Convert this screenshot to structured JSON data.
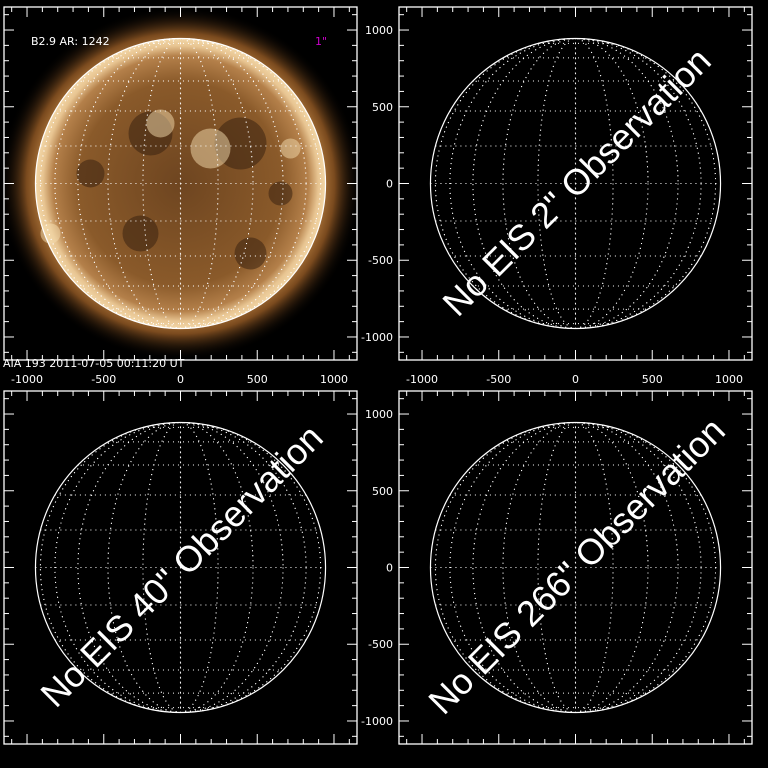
{
  "panels": [
    {
      "id": "aia",
      "has_image": true,
      "x_labels": true,
      "y_labels": false,
      "flare_label": "B2.9 AR: 1242",
      "resolution_label": "1\"",
      "footer": "AIA 193   2011-07-05 00:11:20 UT",
      "message": ""
    },
    {
      "id": "eis-2",
      "has_image": false,
      "x_labels": true,
      "y_labels": true,
      "message": "No EIS 2\" Observation"
    },
    {
      "id": "eis-40",
      "has_image": false,
      "x_labels": false,
      "y_labels": false,
      "message": "No EIS 40\" Observation"
    },
    {
      "id": "eis-266",
      "has_image": false,
      "x_labels": false,
      "y_labels": true,
      "message": "No EIS 266\" Observation"
    }
  ],
  "axis": {
    "range": [
      -1150,
      1150
    ],
    "major_ticks": [
      -1000,
      -500,
      0,
      500,
      1000
    ],
    "minor_step": 100,
    "solar_radius": 945
  },
  "colors": {
    "frame": "#ffffff",
    "resolution": "#cc00cc",
    "sun_core": "#8a5a2a",
    "sun_edge": "#f5d9a8"
  }
}
